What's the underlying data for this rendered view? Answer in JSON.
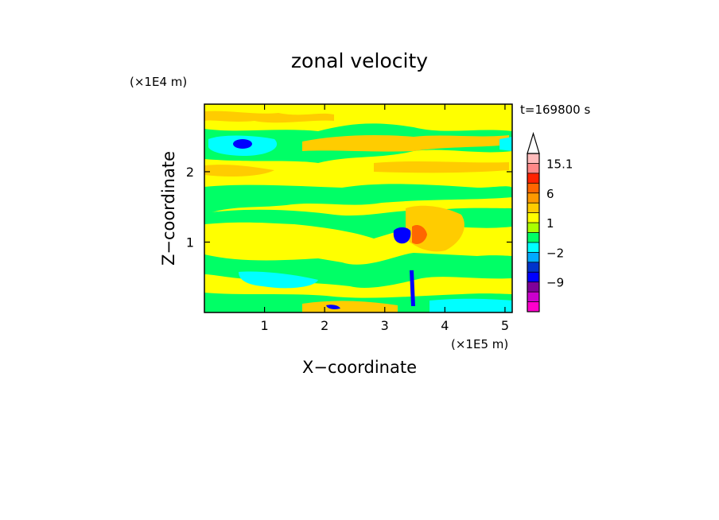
{
  "chart_data": {
    "type": "heatmap",
    "title": "zonal velocity",
    "xlabel": "X−coordinate",
    "ylabel": "Z−coordinate",
    "x_unit": "(×1E5 m)",
    "y_unit": "(×1E4 m)",
    "time_label": "t=169800 s",
    "xlim": [
      0,
      5.12
    ],
    "ylim": [
      0,
      2.96
    ],
    "x_ticks": [
      1,
      2,
      3,
      4,
      5
    ],
    "y_ticks": [
      1,
      2
    ],
    "x_tick_labels": [
      "1",
      "2",
      "3",
      "4",
      "5"
    ],
    "y_tick_labels": [
      "1",
      "2"
    ],
    "colorbar": {
      "levels_bottom_to_top": [
        "#ff00cc",
        "#cc00cc",
        "#800099",
        "#0000ff",
        "#0033cc",
        "#00aaff",
        "#00ffff",
        "#00ff66",
        "#aaff00",
        "#ffff00",
        "#ffcc00",
        "#ff9900",
        "#ff6600",
        "#ff2200",
        "#ff8888",
        "#ffbbbb"
      ],
      "tick_labels": [
        {
          "label": "15.1",
          "value": 15.1
        },
        {
          "label": "6",
          "value": 6
        },
        {
          "label": "1",
          "value": 1
        },
        {
          "label": "−2",
          "value": -2
        },
        {
          "label": "−9",
          "value": -9
        }
      ],
      "extend_top": true
    },
    "field_description_regions": [
      {
        "name": "background",
        "color": "#ffff00"
      },
      {
        "name": "green-bands",
        "color": "#00ff66"
      },
      {
        "name": "orange-bands",
        "color": "#ffcc00"
      },
      {
        "name": "cyan-patches",
        "color": "#00ffff"
      },
      {
        "name": "blue-cores",
        "color": "#0000ff"
      },
      {
        "name": "red-core",
        "color": "#ff6600"
      }
    ]
  }
}
